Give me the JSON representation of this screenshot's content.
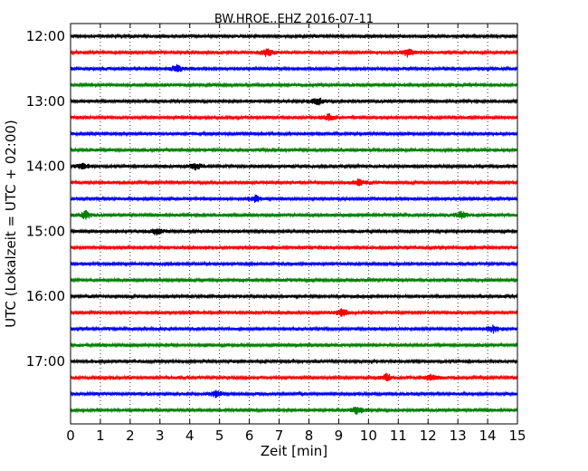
{
  "chart_data": {
    "type": "line",
    "title": "BW.HROE..EHZ 2016-07-11",
    "xlabel": "Zeit  [min]",
    "ylabel": "UTC (Lokalzeit = UTC + 02:00)",
    "xlim": [
      0,
      15
    ],
    "x_ticks": [
      "0",
      "1",
      "2",
      "3",
      "4",
      "5",
      "6",
      "7",
      "8",
      "9",
      "10",
      "11",
      "12",
      "13",
      "14",
      "15"
    ],
    "y_ticks": [
      "12:00",
      "13:00",
      "14:00",
      "15:00",
      "16:00",
      "17:00"
    ],
    "grid": "vertical dotted",
    "trace_colors": [
      "#000000",
      "#ff0000",
      "#0000ff",
      "#008000"
    ],
    "traces": [
      {
        "start": "12:00",
        "color": "#000000",
        "events": []
      },
      {
        "start": "12:15",
        "color": "#ff0000",
        "events": [
          6.6,
          11.3
        ]
      },
      {
        "start": "12:30",
        "color": "#0000ff",
        "events": [
          3.6
        ]
      },
      {
        "start": "12:45",
        "color": "#008000",
        "events": []
      },
      {
        "start": "13:00",
        "color": "#000000",
        "events": [
          8.3
        ]
      },
      {
        "start": "13:15",
        "color": "#ff0000",
        "events": [
          8.7
        ]
      },
      {
        "start": "13:30",
        "color": "#0000ff",
        "events": []
      },
      {
        "start": "13:45",
        "color": "#008000",
        "events": []
      },
      {
        "start": "14:00",
        "color": "#000000",
        "events": [
          0.4,
          4.2
        ]
      },
      {
        "start": "14:15",
        "color": "#ff0000",
        "events": [
          9.7
        ]
      },
      {
        "start": "14:30",
        "color": "#0000ff",
        "events": [
          6.2
        ]
      },
      {
        "start": "14:45",
        "color": "#008000",
        "events": [
          0.5,
          13.1
        ]
      },
      {
        "start": "15:00",
        "color": "#000000",
        "events": [
          2.9
        ]
      },
      {
        "start": "15:15",
        "color": "#ff0000",
        "events": []
      },
      {
        "start": "15:30",
        "color": "#0000ff",
        "events": []
      },
      {
        "start": "15:45",
        "color": "#008000",
        "events": []
      },
      {
        "start": "16:00",
        "color": "#000000",
        "events": []
      },
      {
        "start": "16:15",
        "color": "#ff0000",
        "events": [
          9.1
        ]
      },
      {
        "start": "16:30",
        "color": "#0000ff",
        "events": [
          14.2
        ]
      },
      {
        "start": "16:45",
        "color": "#008000",
        "events": []
      },
      {
        "start": "17:00",
        "color": "#000000",
        "events": []
      },
      {
        "start": "17:15",
        "color": "#ff0000",
        "events": [
          10.6,
          12.1
        ]
      },
      {
        "start": "17:30",
        "color": "#0000ff",
        "events": [
          4.9
        ]
      },
      {
        "start": "17:45",
        "color": "#008000",
        "events": [
          9.6
        ]
      }
    ]
  }
}
